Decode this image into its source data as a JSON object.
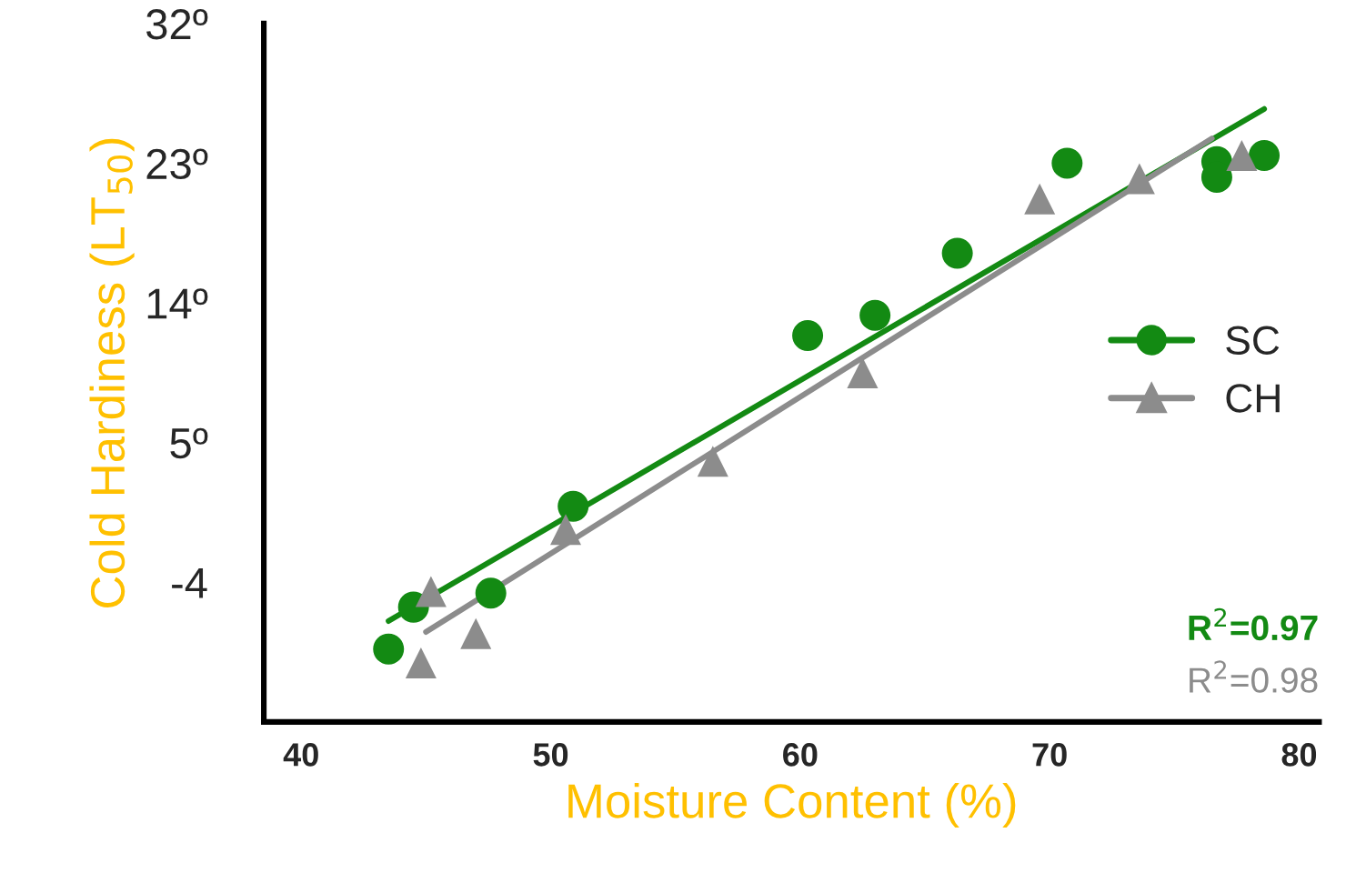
{
  "chart_data": {
    "type": "scatter",
    "xlabel": "Moisture Content (%)",
    "ylabel": "Cold Hardiness (LT$_{50}$)",
    "xlim": [
      38.5,
      80.8
    ],
    "xticks": [
      40,
      50,
      60,
      70,
      80
    ],
    "ylim": [
      -13,
      32
    ],
    "yticks": [
      {
        "value": -4,
        "label": "-4"
      },
      {
        "value": 5,
        "label": "5º"
      },
      {
        "value": 14,
        "label": "14º"
      },
      {
        "value": 23,
        "label": "23º"
      },
      {
        "value": 32,
        "label": "32º"
      }
    ],
    "series": [
      {
        "name": "SC",
        "color": "#138a13",
        "marker": "circle",
        "x": [
          43.5,
          44.5,
          47.6,
          50.9,
          60.3,
          63.0,
          66.3,
          70.7,
          76.7,
          76.7,
          78.6
        ],
        "values": [
          -8.3,
          -5.6,
          -4.7,
          0.9,
          11.9,
          13.2,
          17.2,
          23.0,
          23.1,
          22.1,
          23.5
        ]
      },
      {
        "name": "CH",
        "color": "#8c8c8c",
        "marker": "triangle",
        "x": [
          44.8,
          45.2,
          47.0,
          50.6,
          56.5,
          62.5,
          69.6,
          73.6,
          77.7
        ],
        "values": [
          -9.2,
          -4.6,
          -7.3,
          -0.6,
          3.8,
          9.5,
          20.7,
          22.0,
          23.5
        ]
      },
      {
        "type": "line",
        "color": "#138a13",
        "x": [
          43.5,
          78.6
        ],
        "values": [
          -6.5,
          26.5
        ]
      },
      {
        "type": "line",
        "color": "#8c8c8c",
        "x": [
          45.0,
          76.5
        ],
        "values": [
          -7.2,
          24.6
        ]
      }
    ],
    "annotations": [
      "R$^{2}$=0.97",
      "R$^{2}$=0.98"
    ],
    "legend": "right",
    "grid": false
  }
}
